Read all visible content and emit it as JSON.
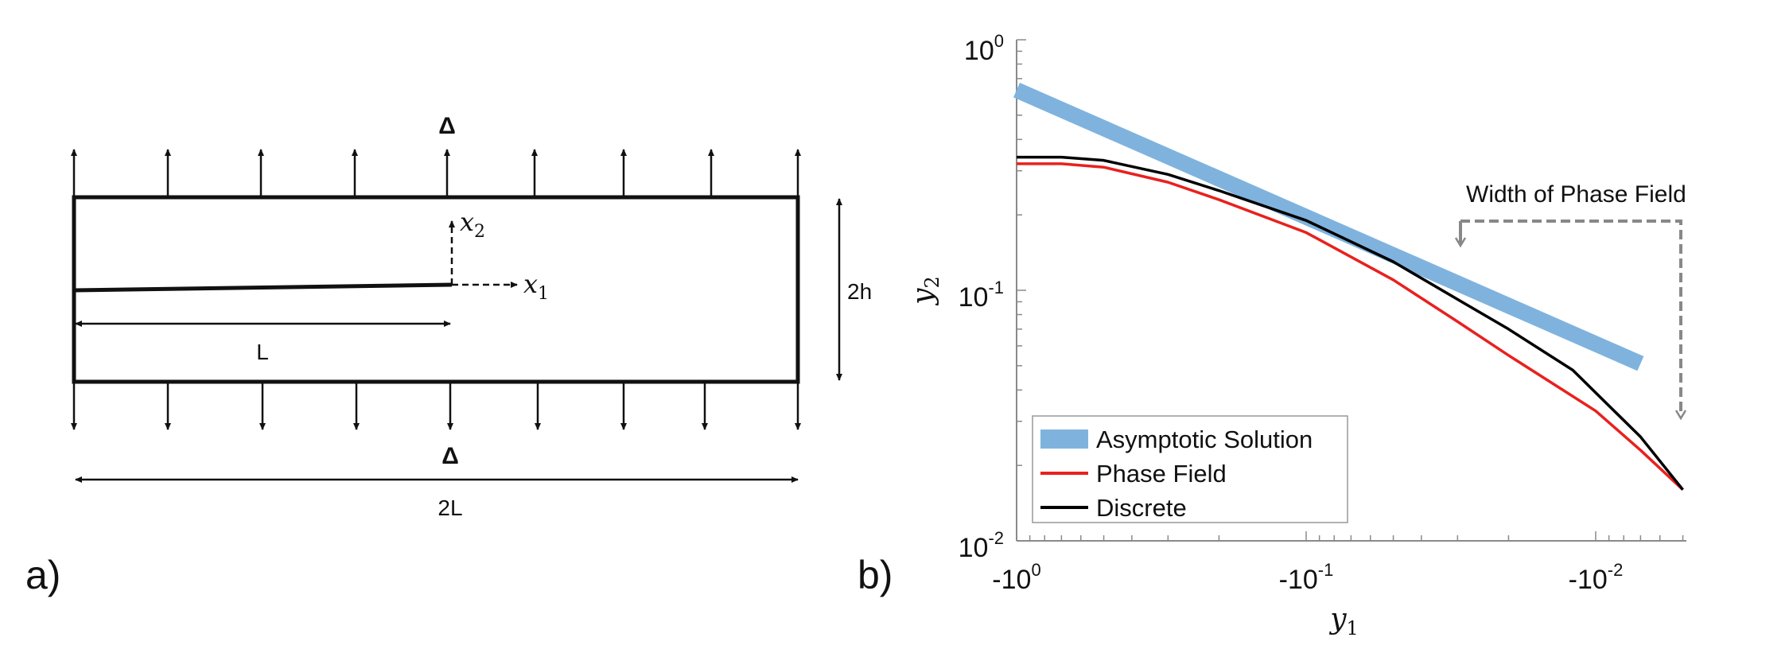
{
  "panel_a": {
    "label": "a)",
    "delta_top": "Δ",
    "delta_bottom": "Δ",
    "x2_label": "x",
    "x2_sub": "2",
    "x1_label": "x",
    "x1_sub": "1",
    "height_label": "2h",
    "crack_label": "L",
    "width_label": "2L"
  },
  "panel_b": {
    "label": "b)",
    "annotation": "Width of Phase Field",
    "xlabel_main": "y",
    "xlabel_sub": "1",
    "ylabel_main": "y",
    "ylabel_sub": "2",
    "yticks": [
      {
        "base": "10",
        "exp": "0"
      },
      {
        "base": "10",
        "exp": "-1"
      },
      {
        "base": "10",
        "exp": "-2"
      }
    ],
    "xticks": [
      {
        "base": "-10",
        "exp": "0"
      },
      {
        "base": "-10",
        "exp": "-1"
      },
      {
        "base": "-10",
        "exp": "-2"
      }
    ]
  },
  "chart_data": {
    "type": "line",
    "xscale": "log (negative)",
    "yscale": "log",
    "xlim": [
      -1,
      -0.005
    ],
    "ylim": [
      0.01,
      1
    ],
    "legend_position": "bottom-left",
    "series": [
      {
        "name": "Asymptotic Solution",
        "color": "#7fb3de",
        "x": [
          -1,
          -0.007
        ],
        "y": [
          0.63,
          0.051
        ]
      },
      {
        "name": "Phase Field",
        "color": "#e8211e",
        "x": [
          -1,
          -0.7,
          -0.5,
          -0.3,
          -0.2,
          -0.1,
          -0.05,
          -0.03,
          -0.02,
          -0.01,
          -0.007,
          -0.005
        ],
        "y": [
          0.32,
          0.32,
          0.31,
          0.27,
          0.23,
          0.17,
          0.11,
          0.075,
          0.055,
          0.033,
          0.023,
          0.016
        ]
      },
      {
        "name": "Discrete",
        "color": "#000000",
        "x": [
          -1,
          -0.7,
          -0.5,
          -0.3,
          -0.2,
          -0.1,
          -0.05,
          -0.03,
          -0.02,
          -0.012,
          -0.007,
          -0.005
        ],
        "y": [
          0.34,
          0.34,
          0.33,
          0.29,
          0.25,
          0.19,
          0.13,
          0.092,
          0.07,
          0.048,
          0.026,
          0.016
        ]
      }
    ]
  }
}
